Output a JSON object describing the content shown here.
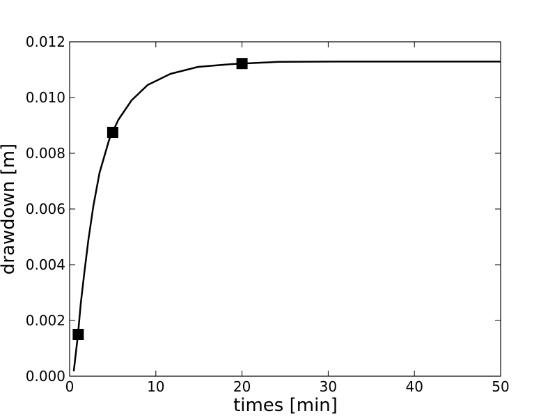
{
  "chart_data": {
    "type": "line",
    "xlabel": "times [min]",
    "ylabel": "drawdown [m]",
    "xlim": [
      0,
      50
    ],
    "ylim": [
      0,
      0.012
    ],
    "xticks": [
      0,
      10,
      20,
      30,
      40,
      50
    ],
    "yticks": [
      {
        "value": 0,
        "label": "0.000"
      },
      {
        "value": 0.002,
        "label": "0.002"
      },
      {
        "value": 0.004,
        "label": "0.004"
      },
      {
        "value": 0.006,
        "label": "0.006"
      },
      {
        "value": 0.008,
        "label": "0.008"
      },
      {
        "value": 0.01,
        "label": "0.010"
      },
      {
        "value": 0.012,
        "label": "0.012"
      }
    ],
    "grid": false,
    "series": [
      {
        "color": "#000000",
        "marker": "none",
        "x": [
          0.48,
          0.97,
          1.29,
          1.7,
          2.18,
          2.75,
          3.47,
          4.6,
          5.65,
          7.19,
          9.05,
          11.7,
          14.9,
          18.8,
          24.2,
          30.7,
          50
        ],
        "values": [
          0.000175,
          0.0015,
          0.0026,
          0.0037,
          0.0049,
          0.0061,
          0.0073,
          0.0085,
          0.0092,
          0.0099,
          0.01045,
          0.01085,
          0.0111,
          0.0112,
          0.01128,
          0.01129,
          0.01129
        ]
      },
      {
        "color": "#000000",
        "marker": "square",
        "x": [
          1,
          5,
          20
        ],
        "values": [
          0.0015,
          0.00875,
          0.01122
        ]
      }
    ]
  }
}
